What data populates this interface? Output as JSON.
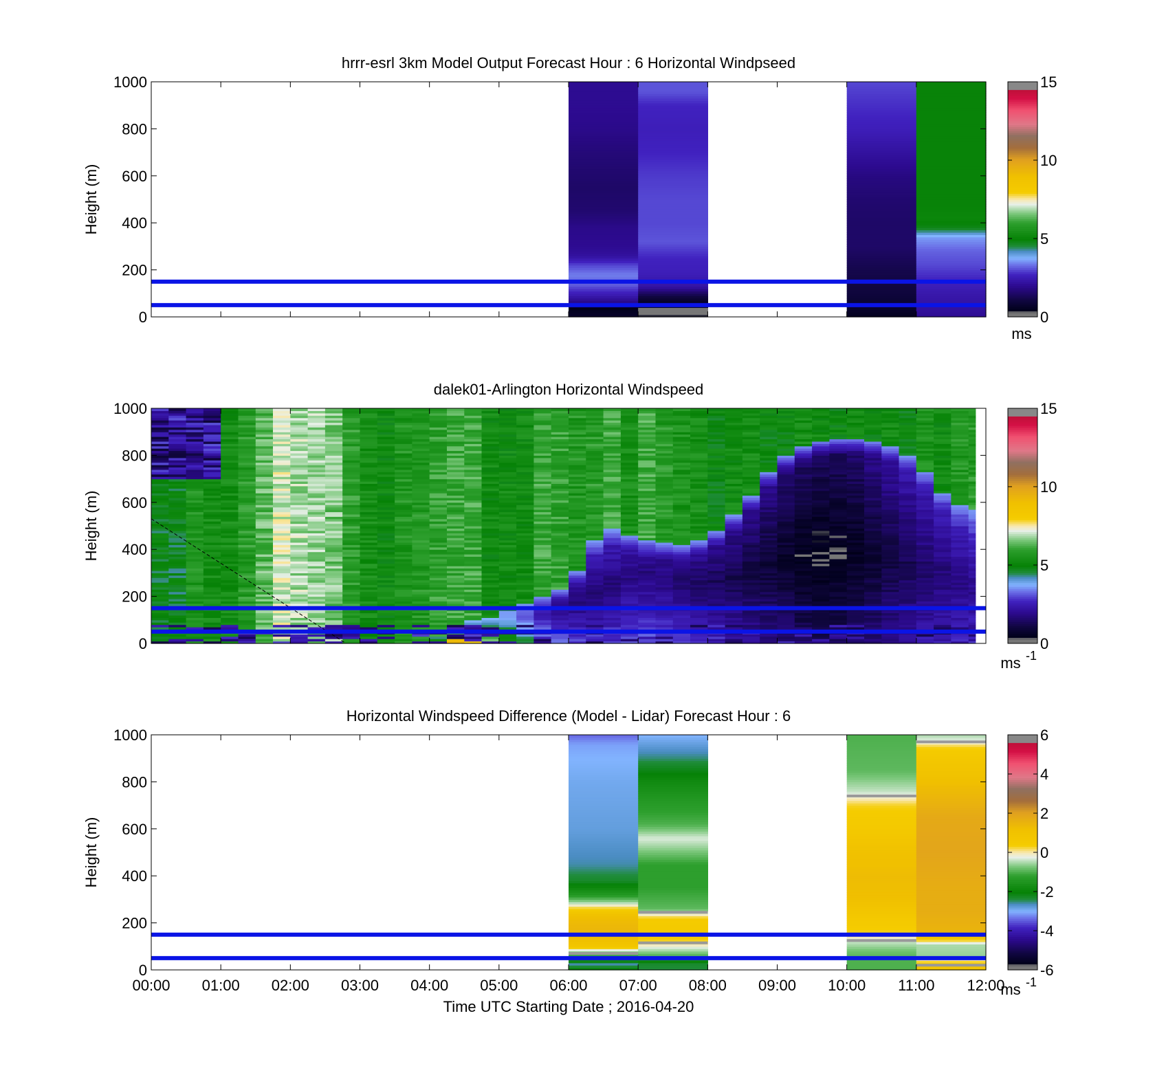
{
  "figure": {
    "xlabel": "Time UTC  Starting Date ; 2016-04-20",
    "xticks": [
      "00:00",
      "01:00",
      "02:00",
      "03:00",
      "04:00",
      "05:00",
      "06:00",
      "07:00",
      "08:00",
      "09:00",
      "10:00",
      "11:00",
      "12:00"
    ]
  },
  "chart_data": [
    {
      "type": "heatmap",
      "title": "hrrr-esrl 3km Model Output   Forecast Hour : 6 Horizontal Windpseed",
      "ylabel": "Height (m)",
      "xlim": [
        0,
        12
      ],
      "ylim": [
        0,
        1000
      ],
      "yticks": [
        "0",
        "200",
        "400",
        "600",
        "800",
        "1000"
      ],
      "reference_lines_m": [
        50,
        150
      ],
      "colorbar": {
        "min": 0,
        "max": 15,
        "ticks": [
          "0",
          "5",
          "10",
          "15"
        ],
        "unit": "ms",
        "unit_sup": ""
      },
      "columns": [
        {
          "x0": 6,
          "x1": 7,
          "profile": [
            [
              0,
              0.7
            ],
            [
              20,
              0.6
            ],
            [
              40,
              0.4
            ],
            [
              60,
              1.8
            ],
            [
              100,
              2.6
            ],
            [
              140,
              3.2
            ],
            [
              180,
              3.4
            ],
            [
              220,
              3.0
            ],
            [
              260,
              2.2
            ],
            [
              300,
              2.0
            ],
            [
              380,
              1.9
            ],
            [
              450,
              1.6
            ],
            [
              550,
              1.5
            ],
            [
              700,
              1.7
            ],
            [
              800,
              1.9
            ],
            [
              900,
              2.0
            ],
            [
              1000,
              2.0
            ]
          ]
        },
        {
          "x0": 7,
          "x1": 8,
          "profile": [
            [
              0,
              0.4
            ],
            [
              20,
              0.2
            ],
            [
              40,
              0.3
            ],
            [
              60,
              0.6
            ],
            [
              90,
              1.1
            ],
            [
              130,
              2.3
            ],
            [
              190,
              2.6
            ],
            [
              250,
              2.7
            ],
            [
              320,
              3.1
            ],
            [
              400,
              3.0
            ],
            [
              500,
              3.0
            ],
            [
              600,
              2.9
            ],
            [
              700,
              2.7
            ],
            [
              800,
              2.6
            ],
            [
              900,
              2.7
            ],
            [
              960,
              3.1
            ],
            [
              1000,
              3.1
            ]
          ]
        },
        {
          "x0": 10,
          "x1": 11,
          "profile": [
            [
              0,
              0.5
            ],
            [
              50,
              0.8
            ],
            [
              100,
              1.0
            ],
            [
              200,
              1.2
            ],
            [
              300,
              1.5
            ],
            [
              400,
              1.5
            ],
            [
              500,
              1.6
            ],
            [
              600,
              1.8
            ],
            [
              650,
              2.0
            ],
            [
              700,
              2.2
            ],
            [
              800,
              2.6
            ],
            [
              900,
              2.8
            ],
            [
              1000,
              3.0
            ]
          ]
        },
        {
          "x0": 11,
          "x1": 12,
          "profile": [
            [
              0,
              2.0
            ],
            [
              40,
              2.2
            ],
            [
              100,
              2.4
            ],
            [
              160,
              2.7
            ],
            [
              220,
              3.0
            ],
            [
              280,
              3.2
            ],
            [
              340,
              3.6
            ],
            [
              380,
              4.8
            ],
            [
              420,
              5.1
            ],
            [
              470,
              5.0
            ],
            [
              600,
              5.0
            ],
            [
              800,
              5.0
            ],
            [
              1000,
              5.0
            ]
          ]
        }
      ]
    },
    {
      "type": "heatmap",
      "title": "dalek01-Arlington  Horizontal Windspeed",
      "ylabel": "Height (m)",
      "xlim": [
        0,
        12
      ],
      "ylim": [
        0,
        1000
      ],
      "yticks": [
        "0",
        "200",
        "400",
        "600",
        "800",
        "1000"
      ],
      "reference_lines_m": [
        50,
        150
      ],
      "colorbar": {
        "min": 0,
        "max": 15,
        "ticks": [
          "0",
          "5",
          "10",
          "15"
        ],
        "unit": "ms",
        "unit_sup": "-1"
      },
      "data_end_hour": 11.85,
      "surface": {
        "knots": [
          [
            0,
            5.0
          ],
          [
            0.6,
            5.2
          ],
          [
            1.0,
            5.5
          ],
          [
            1.5,
            6.2
          ],
          [
            2.0,
            7.0
          ],
          [
            2.5,
            6.9
          ],
          [
            3.0,
            5.3
          ],
          [
            3.5,
            5.6
          ],
          [
            4.0,
            5.5
          ],
          [
            4.5,
            6.0
          ],
          [
            5.0,
            5.2
          ],
          [
            5.5,
            5.6
          ],
          [
            6.0,
            5.8
          ],
          [
            6.5,
            5.9
          ],
          [
            7.0,
            5.8
          ],
          [
            7.5,
            5.6
          ],
          [
            8.0,
            5.3
          ],
          [
            8.5,
            5.2
          ],
          [
            9.0,
            5.0
          ],
          [
            9.5,
            5.4
          ],
          [
            10.0,
            4.9
          ],
          [
            10.5,
            4.8
          ],
          [
            11.0,
            5.2
          ],
          [
            11.5,
            5.5
          ],
          [
            12,
            5.5
          ]
        ],
        "amplitude": 0.5
      },
      "layer_top_m": [
        [
          0,
          0
        ],
        [
          4.0,
          0
        ],
        [
          4.3,
          80
        ],
        [
          5.0,
          120
        ],
        [
          6.0,
          250
        ],
        [
          6.5,
          500
        ],
        [
          7.0,
          450
        ],
        [
          7.6,
          420
        ],
        [
          8.0,
          450
        ],
        [
          8.5,
          580
        ],
        [
          9.0,
          780
        ],
        [
          9.5,
          860
        ],
        [
          10.0,
          880
        ],
        [
          10.5,
          860
        ],
        [
          11.0,
          780
        ],
        [
          11.5,
          600
        ],
        [
          12.0,
          560
        ]
      ],
      "core_m": [
        [
          0,
          300
        ],
        [
          4,
          300
        ],
        [
          6,
          180
        ],
        [
          7,
          300
        ],
        [
          8,
          250
        ],
        [
          9,
          350
        ],
        [
          10,
          400
        ],
        [
          11,
          330
        ],
        [
          12,
          220
        ]
      ],
      "core_speed": [
        [
          0,
          2.5
        ],
        [
          4.3,
          2.5
        ],
        [
          5.0,
          1.8
        ],
        [
          6.0,
          1.6
        ],
        [
          7.0,
          1.8
        ],
        [
          8.0,
          1.4
        ],
        [
          9.0,
          0.8
        ],
        [
          9.5,
          0.3
        ],
        [
          10.0,
          0.4
        ],
        [
          11.0,
          1.4
        ],
        [
          12.0,
          2.0
        ]
      ],
      "early_top_mixing": {
        "x1": 0.8,
        "y0": 700,
        "speed": 2.0
      },
      "diagonal_line": {
        "x0": 0,
        "y0": 530,
        "x1": 2.8,
        "y1": 0
      }
    },
    {
      "type": "heatmap",
      "title": "Horizontal Windspeed Difference (Model - Lidar) Forecast Hour : 6",
      "ylabel": "Height (m)",
      "xlim": [
        0,
        12
      ],
      "ylim": [
        0,
        1000
      ],
      "yticks": [
        "0",
        "200",
        "400",
        "600",
        "800",
        "1000"
      ],
      "reference_lines_m": [
        50,
        150
      ],
      "colorbar": {
        "min": -6,
        "max": 6,
        "ticks": [
          "-6",
          "-4",
          "-2",
          "0",
          "2",
          "4",
          "6"
        ],
        "unit": "ms",
        "unit_sup": "-1"
      },
      "columns": [
        {
          "x0": 6,
          "x1": 7,
          "profile": [
            [
              0,
              -2.0
            ],
            [
              25,
              -2.6
            ],
            [
              50,
              -1.5
            ],
            [
              80,
              -0.6
            ],
            [
              100,
              0.8
            ],
            [
              150,
              1.5
            ],
            [
              190,
              1.4
            ],
            [
              230,
              1.2
            ],
            [
              260,
              0.4
            ],
            [
              290,
              -0.6
            ],
            [
              320,
              -1.4
            ],
            [
              380,
              -2.3
            ],
            [
              450,
              -2.6
            ],
            [
              600,
              -2.8
            ],
            [
              800,
              -2.9
            ],
            [
              900,
              -3.0
            ],
            [
              960,
              -3.1
            ],
            [
              1000,
              -3.4
            ]
          ]
        },
        {
          "x0": 7,
          "x1": 8,
          "profile": [
            [
              0,
              -2.4
            ],
            [
              30,
              -2.3
            ],
            [
              60,
              -1.0
            ],
            [
              100,
              -0.2
            ],
            [
              130,
              0.4
            ],
            [
              180,
              0.5
            ],
            [
              220,
              0.4
            ],
            [
              260,
              -0.9
            ],
            [
              350,
              -1.2
            ],
            [
              450,
              -1.2
            ],
            [
              520,
              -0.6
            ],
            [
              560,
              -0.3
            ],
            [
              620,
              -1.0
            ],
            [
              700,
              -1.3
            ],
            [
              800,
              -1.8
            ],
            [
              900,
              -2.5
            ],
            [
              1000,
              -3.0
            ]
          ]
        },
        {
          "x0": 10,
          "x1": 11,
          "profile": [
            [
              0,
              -1.0
            ],
            [
              40,
              -1.0
            ],
            [
              80,
              -0.8
            ],
            [
              120,
              -0.4
            ],
            [
              160,
              0.3
            ],
            [
              220,
              0.6
            ],
            [
              300,
              1.2
            ],
            [
              400,
              1.3
            ],
            [
              500,
              1.1
            ],
            [
              600,
              0.6
            ],
            [
              700,
              0.3
            ],
            [
              760,
              -0.4
            ],
            [
              850,
              -0.9
            ],
            [
              1000,
              -1.0
            ]
          ]
        },
        {
          "x0": 11,
          "x1": 12,
          "profile": [
            [
              0,
              1.0
            ],
            [
              20,
              0.8
            ],
            [
              60,
              -0.6
            ],
            [
              110,
              -0.5
            ],
            [
              150,
              1.5
            ],
            [
              250,
              1.7
            ],
            [
              350,
              1.7
            ],
            [
              500,
              1.9
            ],
            [
              650,
              1.8
            ],
            [
              780,
              1.3
            ],
            [
              880,
              0.8
            ],
            [
              950,
              0.3
            ],
            [
              970,
              -0.2
            ],
            [
              1000,
              -0.5
            ]
          ]
        }
      ],
      "marks": [
        {
          "x0": 6,
          "x1": 7,
          "y": 70
        },
        {
          "x0": 7,
          "x1": 8,
          "y": 115
        },
        {
          "x0": 7,
          "x1": 8,
          "y": 245
        },
        {
          "x0": 10,
          "x1": 11,
          "y": 740
        },
        {
          "x0": 10,
          "x1": 11,
          "y": 125
        },
        {
          "x0": 11,
          "x1": 12,
          "y": 970
        },
        {
          "x0": 11,
          "x1": 12,
          "y": 20
        }
      ]
    }
  ]
}
